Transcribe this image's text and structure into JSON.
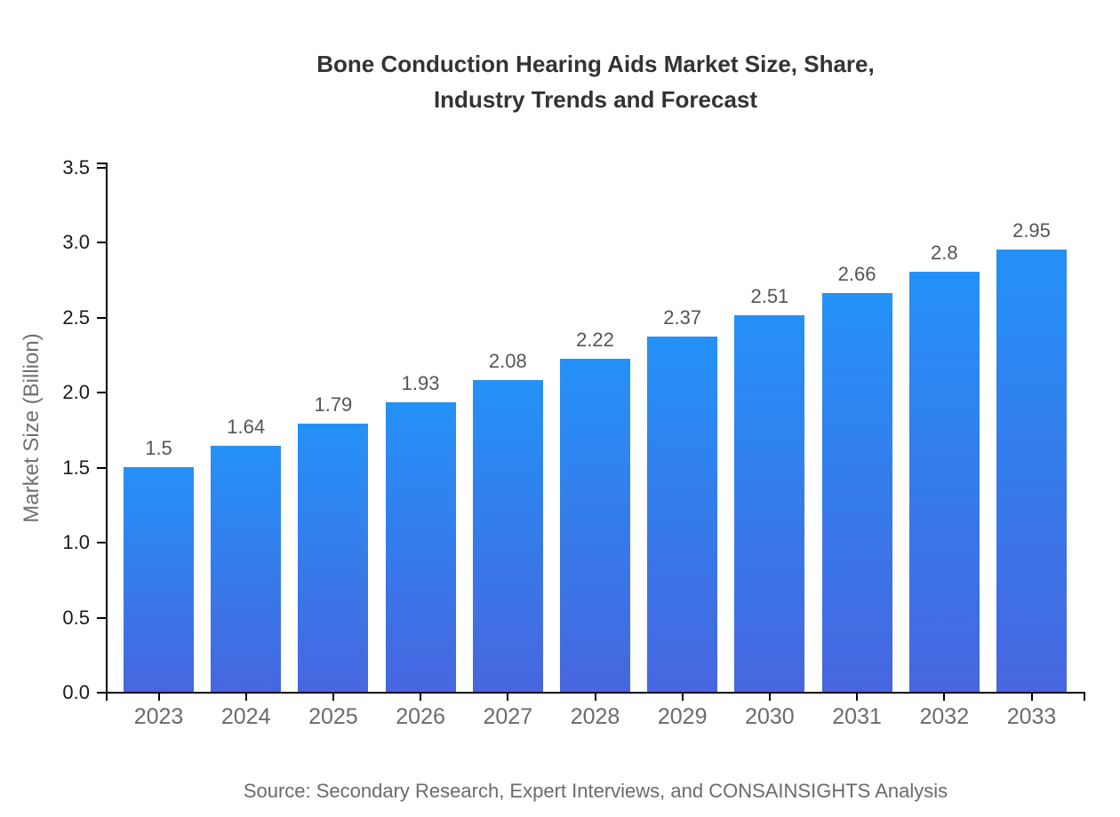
{
  "title": {
    "line1": "Bone Conduction Hearing Aids Market Size, Share,",
    "line2": "Industry Trends and Forecast"
  },
  "source": "Source: Secondary Research, Expert Interviews, and CONSAINSIGHTS Analysis",
  "chart_data": {
    "type": "bar",
    "title": "Bone Conduction Hearing Aids Market Size, Share, Industry Trends and Forecast",
    "categories": [
      "2023",
      "2024",
      "2025",
      "2026",
      "2027",
      "2028",
      "2029",
      "2030",
      "2031",
      "2032",
      "2033"
    ],
    "values": [
      1.5,
      1.64,
      1.79,
      1.93,
      2.08,
      2.22,
      2.37,
      2.51,
      2.66,
      2.8,
      2.95
    ],
    "value_labels": [
      "1.5",
      "1.64",
      "1.79",
      "1.93",
      "2.08",
      "2.22",
      "2.37",
      "2.51",
      "2.66",
      "2.8",
      "2.95"
    ],
    "xlabel": "",
    "ylabel": "Market Size (Billion)",
    "ylim": [
      0,
      3.5
    ],
    "ytick_labels": [
      "0.0",
      "0.5",
      "1.0",
      "1.5",
      "2.0",
      "2.5",
      "3.0",
      "3.5"
    ],
    "grid": false,
    "legend": "none",
    "colors": {
      "bar_gradient_top": "#2491f7",
      "bar_gradient_bottom": "#4766df",
      "axis": "#000000",
      "ytick_label": "#1a1a1a",
      "category_label": "#6b6b6b",
      "value_label": "#555555",
      "title": "#333333",
      "ylabel": "#707070",
      "source": "#6b6b6b",
      "background": "#ffffff"
    }
  }
}
